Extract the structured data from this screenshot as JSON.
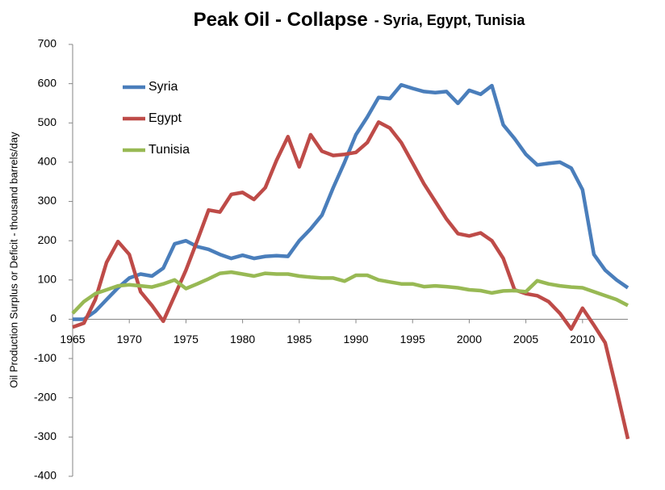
{
  "chart_data": {
    "type": "line",
    "title": "Peak Oil -  Collapse",
    "subtitle": "- Syria, Egypt, Tunisia",
    "y_label": "Oil  Production Surplus or Deficit - thousand  barrels/day",
    "x": [
      1965,
      1966,
      1967,
      1968,
      1969,
      1970,
      1971,
      1972,
      1973,
      1974,
      1975,
      1976,
      1977,
      1978,
      1979,
      1980,
      1981,
      1982,
      1983,
      1984,
      1985,
      1986,
      1987,
      1988,
      1989,
      1990,
      1991,
      1992,
      1993,
      1994,
      1995,
      1996,
      1997,
      1998,
      1999,
      2000,
      2001,
      2002,
      2003,
      2004,
      2005,
      2006,
      2007,
      2008,
      2009,
      2010,
      2011,
      2012,
      2013,
      2014
    ],
    "series": [
      {
        "name": "Syria",
        "color": "#4a7ebb",
        "values": [
          0,
          0,
          20,
          50,
          80,
          105,
          115,
          110,
          130,
          192,
          200,
          185,
          178,
          165,
          155,
          163,
          155,
          160,
          162,
          160,
          200,
          230,
          265,
          335,
          400,
          470,
          515,
          565,
          562,
          597,
          588,
          580,
          577,
          580,
          550,
          583,
          573,
          595,
          495,
          460,
          420,
          393,
          397,
          400,
          385,
          330,
          165,
          125,
          100,
          80
        ]
      },
      {
        "name": "Egypt",
        "color": "#be4b48",
        "values": [
          -20,
          -10,
          50,
          145,
          198,
          165,
          70,
          35,
          -5,
          60,
          125,
          200,
          278,
          273,
          318,
          323,
          305,
          335,
          405,
          465,
          388,
          470,
          428,
          417,
          420,
          425,
          450,
          502,
          487,
          450,
          398,
          345,
          300,
          255,
          218,
          212,
          220,
          200,
          155,
          75,
          65,
          60,
          45,
          15,
          -25,
          28,
          -15,
          -60,
          -180,
          -305
        ]
      },
      {
        "name": "Tunisia",
        "color": "#98b954",
        "values": [
          15,
          45,
          65,
          75,
          85,
          88,
          85,
          82,
          90,
          100,
          78,
          90,
          103,
          117,
          120,
          115,
          110,
          117,
          115,
          115,
          110,
          107,
          105,
          105,
          97,
          112,
          112,
          100,
          95,
          90,
          90,
          83,
          85,
          83,
          80,
          75,
          73,
          67,
          72,
          73,
          70,
          98,
          90,
          85,
          82,
          80,
          70,
          60,
          50,
          35
        ]
      }
    ],
    "xlim": [
      1965,
      2014
    ],
    "xticks": [
      1965,
      1970,
      1975,
      1980,
      1985,
      1990,
      1995,
      2000,
      2005,
      2010
    ],
    "ylim": [
      -400,
      700
    ],
    "yticks": [
      -400,
      -300,
      -200,
      -100,
      0,
      100,
      200,
      300,
      400,
      500,
      600,
      700
    ],
    "grid": false,
    "legend": "upper-left"
  }
}
